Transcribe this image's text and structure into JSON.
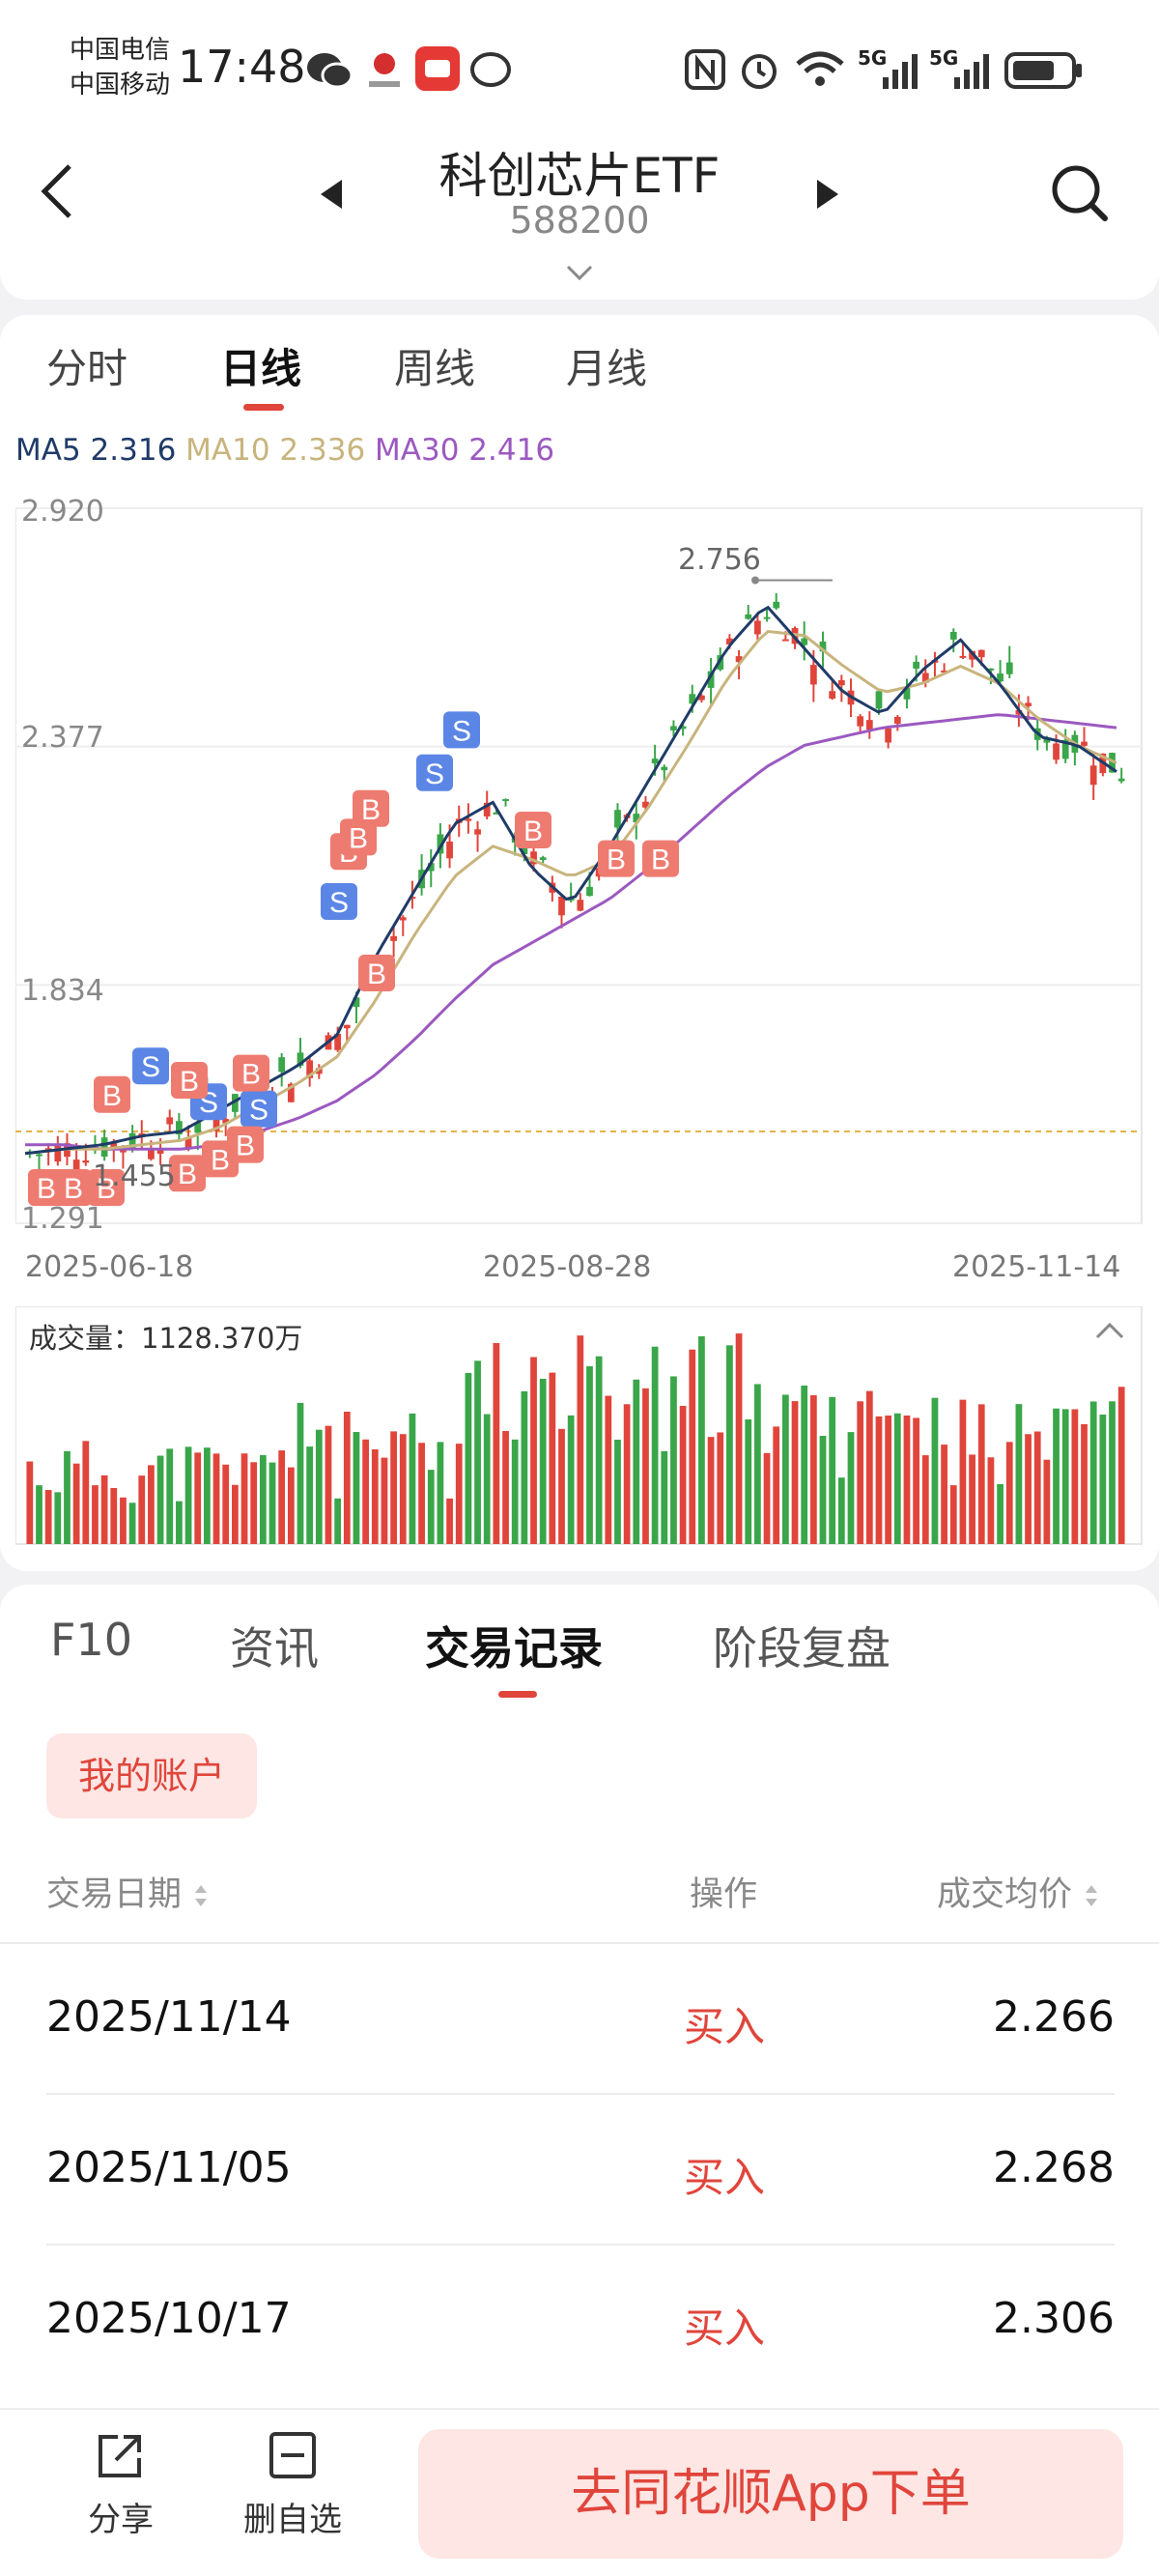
{
  "status_bar": {
    "carrier1": "中国电信",
    "carrier2": "中国移动",
    "time": "17:48",
    "signal1": "5G",
    "signal2": "5G"
  },
  "header": {
    "title": "科创芯片ETF",
    "code": "588200"
  },
  "kline_tabs": [
    "分时",
    "日线",
    "周线",
    "月线"
  ],
  "ma": {
    "ma5_label": "MA5",
    "ma5_value": "2.316",
    "ma10_label": "MA10",
    "ma10_value": "2.336",
    "ma30_label": "MA30",
    "ma30_value": "2.416"
  },
  "colors": {
    "up": "#e0453b",
    "down": "#3aa64a",
    "ma5": "#1f3b68",
    "ma10": "#c8b47d",
    "ma30": "#9b59c0",
    "buy_marker": "#ee7b70",
    "sell_marker": "#5b86e5"
  },
  "chart_data": {
    "type": "candlestick",
    "y_ticks": [
      "2.920",
      "2.377",
      "1.834",
      "1.291"
    ],
    "ylim": [
      1.291,
      2.92
    ],
    "x_labels": [
      "2025-06-18",
      "2025-08-28",
      "2025-11-14"
    ],
    "high_annotation": "2.756",
    "low_annotation": "1.455",
    "ma5": [
      1.45,
      1.46,
      1.47,
      1.49,
      1.5,
      1.55,
      1.6,
      1.65,
      1.72,
      1.9,
      2.05,
      2.2,
      2.25,
      2.1,
      2.02,
      2.15,
      2.3,
      2.45,
      2.6,
      2.7,
      2.6,
      2.5,
      2.45,
      2.55,
      2.62,
      2.52,
      2.4,
      2.38,
      2.32
    ],
    "ma10": [
      1.45,
      1.46,
      1.46,
      1.47,
      1.48,
      1.51,
      1.56,
      1.61,
      1.67,
      1.8,
      1.95,
      2.08,
      2.15,
      2.12,
      2.08,
      2.12,
      2.24,
      2.38,
      2.53,
      2.64,
      2.63,
      2.56,
      2.5,
      2.52,
      2.56,
      2.52,
      2.44,
      2.38,
      2.34
    ],
    "ma30": [
      1.47,
      1.47,
      1.46,
      1.46,
      1.46,
      1.47,
      1.5,
      1.53,
      1.57,
      1.63,
      1.71,
      1.8,
      1.88,
      1.93,
      1.98,
      2.03,
      2.1,
      2.18,
      2.26,
      2.33,
      2.38,
      2.4,
      2.42,
      2.43,
      2.44,
      2.45,
      2.44,
      2.43,
      2.42
    ],
    "volume_label": "成交量：",
    "volume_value": "1128.370万"
  },
  "bottom_tabs": [
    "F10",
    "资讯",
    "交易记录",
    "阶段复盘"
  ],
  "account_button": "我的账户",
  "table": {
    "col_date": "交易日期",
    "col_op": "操作",
    "col_price": "成交均价",
    "rows": [
      {
        "date": "2025/11/14",
        "op": "买入",
        "price": "2.266"
      },
      {
        "date": "2025/11/05",
        "op": "买入",
        "price": "2.268"
      },
      {
        "date": "2025/10/17",
        "op": "买入",
        "price": "2.306"
      }
    ]
  },
  "bottom_bar": {
    "share": "分享",
    "remove": "删自选",
    "order": "去同花顺App下单"
  }
}
